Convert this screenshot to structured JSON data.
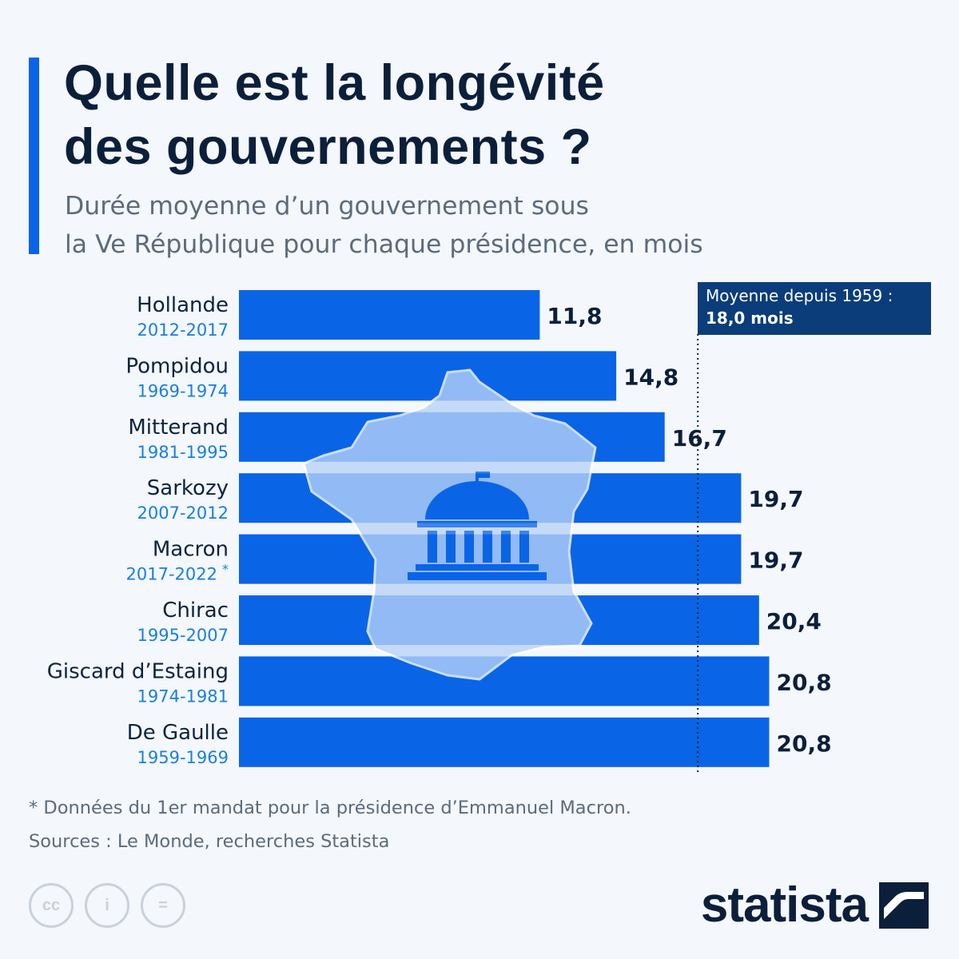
{
  "header": {
    "title_lines": [
      "Quelle est la longévité",
      "des gouvernements ?"
    ],
    "subtitle_lines": [
      "Durée moyenne d’un gouvernement sous",
      "la Ve République pour chaque présidence, en mois"
    ]
  },
  "colors": {
    "accent": "#0a64e6",
    "bar": "#0a64e6",
    "map_fill": "#b9d3f8",
    "callout_bg": "#0a3d7a",
    "period_text": "#1a7fe0",
    "label_text": "#0c2340",
    "title_text": "#0c1f3a",
    "subtitle_text": "#5c6b7c"
  },
  "chart_data": {
    "type": "bar",
    "orientation": "horizontal",
    "categories": [
      "Hollande",
      "Pompidou",
      "Mitterand",
      "Sarkozy",
      "Macron",
      "Chirac",
      "Giscard d’Estaing",
      "De Gaulle"
    ],
    "periods": [
      "2012-2017",
      "1969-1974",
      "1981-1995",
      "2007-2012",
      "2017-2022",
      "1995-2007",
      "1974-1981",
      "1959-1969"
    ],
    "period_markers": [
      "",
      "",
      "",
      "",
      "*",
      "",
      "",
      ""
    ],
    "values": [
      11.8,
      14.8,
      16.7,
      19.7,
      19.7,
      20.4,
      20.8,
      20.8
    ],
    "value_labels": [
      "11,8",
      "14,8",
      "16,7",
      "19,7",
      "19,7",
      "20,4",
      "20,8",
      "20,8"
    ],
    "xlim": [
      0,
      21
    ],
    "reference_line": {
      "value": 18.0,
      "label_lines": [
        "Moyenne depuis 1959 :",
        "18,0 mois"
      ]
    },
    "title": "",
    "xlabel": "",
    "ylabel": ""
  },
  "footer": {
    "lines": [
      "* Données du 1er mandat pour la présidence d’Emmanuel Macron.",
      "Sources : Le Monde, recherches Statista"
    ],
    "license_icons": [
      "creative-commons-icon",
      "attribution-icon",
      "no-derivatives-icon"
    ],
    "license_glyphs": [
      "cc",
      "i",
      "="
    ],
    "brand": "statista"
  }
}
